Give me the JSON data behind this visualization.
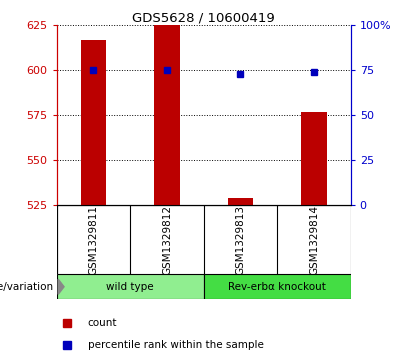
{
  "title": "GDS5628 / 10600419",
  "samples": [
    "GSM1329811",
    "GSM1329812",
    "GSM1329813",
    "GSM1329814"
  ],
  "count_values": [
    617,
    625,
    529,
    577
  ],
  "percentile_values": [
    75,
    75,
    73,
    74
  ],
  "ylim_left": [
    525,
    625
  ],
  "ylim_right": [
    0,
    100
  ],
  "yticks_left": [
    525,
    550,
    575,
    600,
    625
  ],
  "yticks_right": [
    0,
    25,
    50,
    75,
    100
  ],
  "yticklabels_right": [
    "0",
    "25",
    "50",
    "75",
    "100%"
  ],
  "groups": [
    {
      "label": "wild type",
      "indices": [
        0,
        1
      ],
      "color": "#90EE90"
    },
    {
      "label": "Rev-erbα knockout",
      "indices": [
        2,
        3
      ],
      "color": "#44DD44"
    }
  ],
  "bar_color": "#BB0000",
  "dot_color": "#0000BB",
  "bar_width": 0.35,
  "background_color": "#FFFFFF",
  "left_axis_color": "#CC0000",
  "right_axis_color": "#0000CC",
  "genotype_label": "genotype/variation",
  "legend_items": [
    {
      "label": "count",
      "color": "#BB0000"
    },
    {
      "label": "percentile rank within the sample",
      "color": "#0000BB"
    }
  ]
}
